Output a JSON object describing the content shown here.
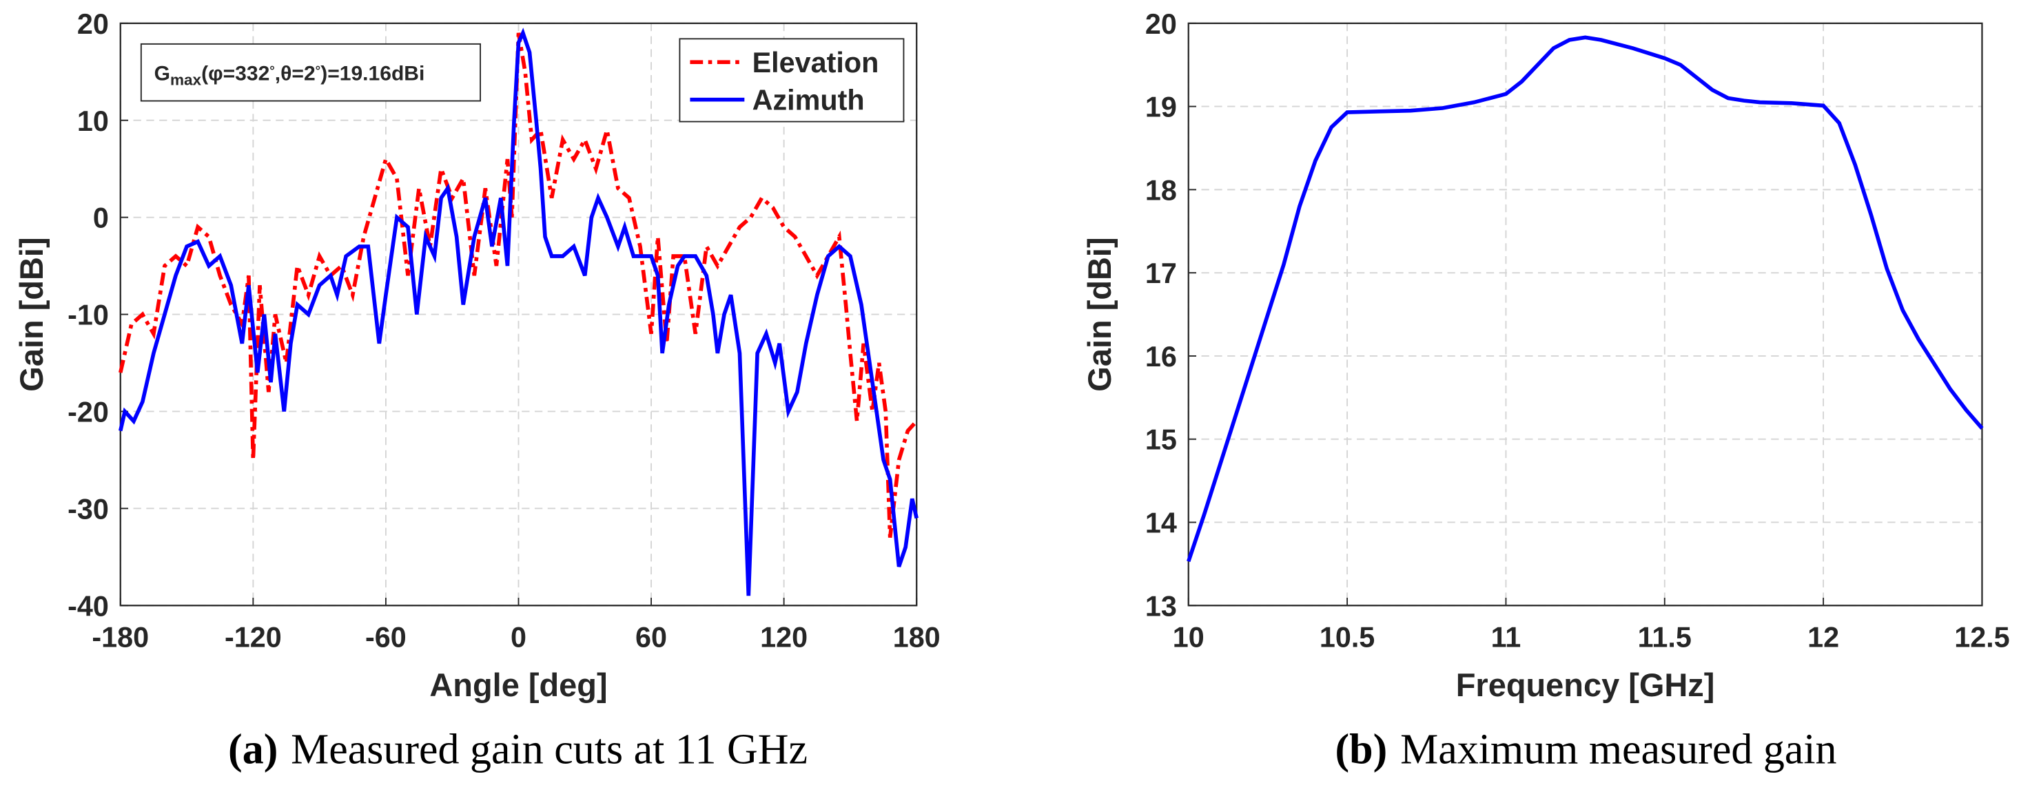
{
  "charts": [
    {
      "chart_data": {
        "type": "line",
        "xlabel": "Angle [deg]",
        "ylabel": "Gain [dBi]",
        "xlim": [
          -180,
          180
        ],
        "xticks": [
          -180,
          -120,
          -60,
          0,
          60,
          120,
          180
        ],
        "ylim": [
          -40,
          20
        ],
        "yticks": [
          -40,
          -30,
          -20,
          -10,
          0,
          10,
          20
        ],
        "grid": true,
        "legend": "upper right",
        "annotation": [
          {
            "text": "G"
          },
          {
            "text": "max",
            "shift": "sub"
          },
          {
            "text": "("
          },
          {
            "text": "φ"
          },
          {
            "text": "=332"
          },
          {
            "text": "°",
            "shift": "sup"
          },
          {
            "text": ","
          },
          {
            "text": "θ"
          },
          {
            "text": "=2"
          },
          {
            "text": "°",
            "shift": "sup"
          },
          {
            "text": ")=19.16dBi"
          }
        ],
        "series": [
          {
            "name": "Elevation",
            "color": "#ff0000",
            "dash": "dashdot",
            "x": [
              -180,
              -175,
              -170,
              -165,
              -160,
              -155,
              -150,
              -145,
              -140,
              -135,
              -130,
              -125,
              -122,
              -120,
              -117,
              -113,
              -110,
              -105,
              -100,
              -95,
              -90,
              -85,
              -80,
              -75,
              -70,
              -65,
              -60,
              -55,
              -50,
              -45,
              -40,
              -35,
              -30,
              -25,
              -20,
              -15,
              -10,
              -5,
              -3,
              0,
              3,
              6,
              10,
              15,
              20,
              25,
              30,
              35,
              40,
              45,
              50,
              55,
              60,
              63,
              67,
              70,
              75,
              80,
              85,
              90,
              95,
              100,
              105,
              110,
              115,
              120,
              125,
              130,
              135,
              140,
              145,
              148,
              150,
              153,
              156,
              160,
              163,
              166,
              168,
              172,
              176,
              180
            ],
            "values": [
              -16,
              -11,
              -10,
              -12,
              -5,
              -4,
              -5,
              -1,
              -2,
              -6,
              -9,
              -11,
              -6,
              -25,
              -7,
              -18,
              -10,
              -15,
              -5,
              -8,
              -4,
              -6,
              -5,
              -8,
              -2,
              2,
              6,
              4,
              -6,
              3,
              -3,
              5,
              2,
              4,
              -6,
              3,
              -5,
              6,
              0,
              19,
              15,
              8,
              9,
              2,
              8,
              6,
              8,
              5,
              9,
              3,
              2,
              -3,
              -12,
              -2,
              -13,
              -4,
              -4,
              -12,
              -3,
              -5,
              -3,
              -1,
              0,
              2,
              1,
              -1,
              -2,
              -4,
              -6,
              -4,
              -2,
              -9,
              -14,
              -21,
              -13,
              -20,
              -15,
              -20,
              -33,
              -25,
              -22,
              -21
            ]
          },
          {
            "name": "Azimuth",
            "color": "#0000ff",
            "dash": "solid",
            "x": [
              -180,
              -178,
              -174,
              -170,
              -165,
              -160,
              -155,
              -150,
              -145,
              -140,
              -135,
              -130,
              -125,
              -122,
              -118,
              -115,
              -112,
              -110,
              -106,
              -103,
              -100,
              -95,
              -90,
              -85,
              -82,
              -78,
              -72,
              -68,
              -63,
              -60,
              -55,
              -50,
              -46,
              -42,
              -38,
              -35,
              -32,
              -28,
              -25,
              -20,
              -15,
              -12,
              -8,
              -5,
              -2,
              0,
              2,
              5,
              8,
              10,
              12,
              15,
              20,
              25,
              30,
              33,
              36,
              40,
              45,
              48,
              52,
              55,
              60,
              63,
              65,
              68,
              72,
              75,
              80,
              85,
              88,
              90,
              93,
              96,
              100,
              104,
              108,
              112,
              116,
              118,
              122,
              126,
              130,
              135,
              140,
              145,
              150,
              155,
              160,
              165,
              168,
              172,
              175,
              178,
              180
            ],
            "values": [
              -22,
              -20,
              -21,
              -19,
              -14,
              -10,
              -6,
              -3,
              -2.5,
              -5,
              -4,
              -7,
              -13,
              -7,
              -16,
              -10,
              -17,
              -12,
              -20,
              -13,
              -9,
              -10,
              -7,
              -6,
              -8,
              -4,
              -3,
              -3,
              -13,
              -8,
              0,
              -1,
              -10,
              -2,
              -4,
              2,
              3,
              -2,
              -9,
              -2,
              2,
              -3,
              2,
              -5,
              10,
              18,
              19,
              17,
              10,
              5,
              -2,
              -4,
              -4,
              -3,
              -6,
              0,
              2,
              0,
              -3,
              -1,
              -4,
              -4,
              -4,
              -6,
              -14,
              -9,
              -5,
              -4,
              -4,
              -6,
              -10,
              -14,
              -10,
              -8,
              -14,
              -39,
              -14,
              -12,
              -15,
              -13,
              -20,
              -18,
              -13,
              -8,
              -4,
              -3,
              -4,
              -9,
              -17,
              -25,
              -27,
              -36,
              -34,
              -29,
              -31
            ]
          }
        ]
      },
      "caption": {
        "label": "(a)",
        "text": "Measured gain cuts at 11 GHz"
      }
    },
    {
      "chart_data": {
        "type": "line",
        "xlabel": "Frequency [GHz]",
        "ylabel": "Gain [dBi]",
        "xlim": [
          10,
          12.5
        ],
        "xticks": [
          10,
          10.5,
          11,
          11.5,
          12,
          12.5
        ],
        "ylim": [
          13,
          20
        ],
        "yticks": [
          13,
          14,
          15,
          16,
          17,
          18,
          19,
          20
        ],
        "grid": true,
        "series": [
          {
            "color": "#0000ff",
            "dash": "solid",
            "x": [
              10,
              10.05,
              10.1,
              10.15,
              10.2,
              10.25,
              10.3,
              10.35,
              10.4,
              10.45,
              10.5,
              10.6,
              10.7,
              10.8,
              10.9,
              11,
              11.05,
              11.1,
              11.15,
              11.2,
              11.25,
              11.3,
              11.4,
              11.5,
              11.55,
              11.6,
              11.65,
              11.7,
              11.75,
              11.8,
              11.9,
              12,
              12.05,
              12.1,
              12.15,
              12.2,
              12.25,
              12.3,
              12.35,
              12.4,
              12.45,
              12.5
            ],
            "values": [
              13.53,
              14.1,
              14.7,
              15.3,
              15.9,
              16.5,
              17.1,
              17.8,
              18.35,
              18.75,
              18.93,
              18.94,
              18.95,
              18.98,
              19.05,
              19.15,
              19.3,
              19.5,
              19.7,
              19.8,
              19.83,
              19.8,
              19.7,
              19.58,
              19.5,
              19.35,
              19.2,
              19.1,
              19.07,
              19.05,
              19.04,
              19.01,
              18.8,
              18.3,
              17.7,
              17.05,
              16.55,
              16.2,
              15.9,
              15.6,
              15.35,
              15.13
            ]
          }
        ]
      },
      "caption": {
        "label": "(b)",
        "text": "Maximum measured gain"
      }
    }
  ]
}
